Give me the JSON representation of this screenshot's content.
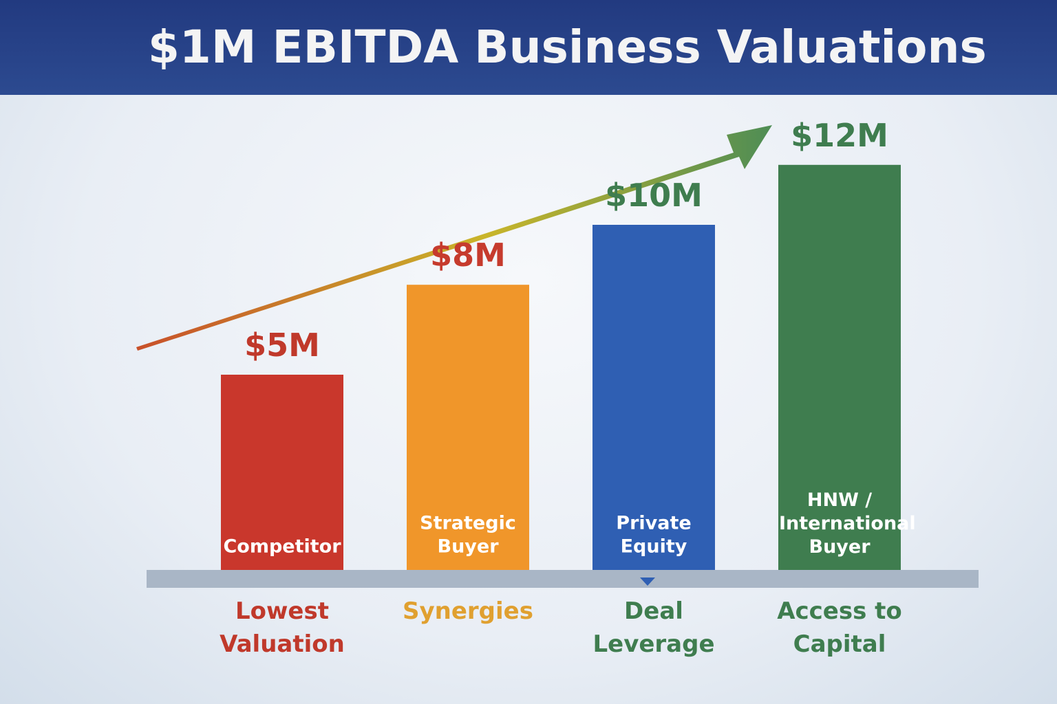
{
  "chart_data": {
    "type": "bar",
    "title": "$1M EBITDA Business Valuations",
    "categories": [
      "Competitor",
      "Strategic Buyer",
      "Private Equity",
      "HNW / International Buyer"
    ],
    "values": [
      5,
      8,
      10,
      12
    ],
    "value_labels": [
      "$5M",
      "$8M",
      "$10M",
      "$12M"
    ],
    "colors": [
      "#c9372c",
      "#f0962a",
      "#2f5fb3",
      "#3f7d4f"
    ],
    "value_label_colors": [
      "#c0392b",
      "#c63b2d",
      "#3f7d4f",
      "#3f7d4f"
    ],
    "notes": [
      "Lowest Valuation",
      "Synergies",
      "Deal Leverage",
      "Access to Capital"
    ],
    "note_colors": [
      "#c0392b",
      "#e0a030",
      "#3f7d4f",
      "#3f7d4f"
    ]
  }
}
